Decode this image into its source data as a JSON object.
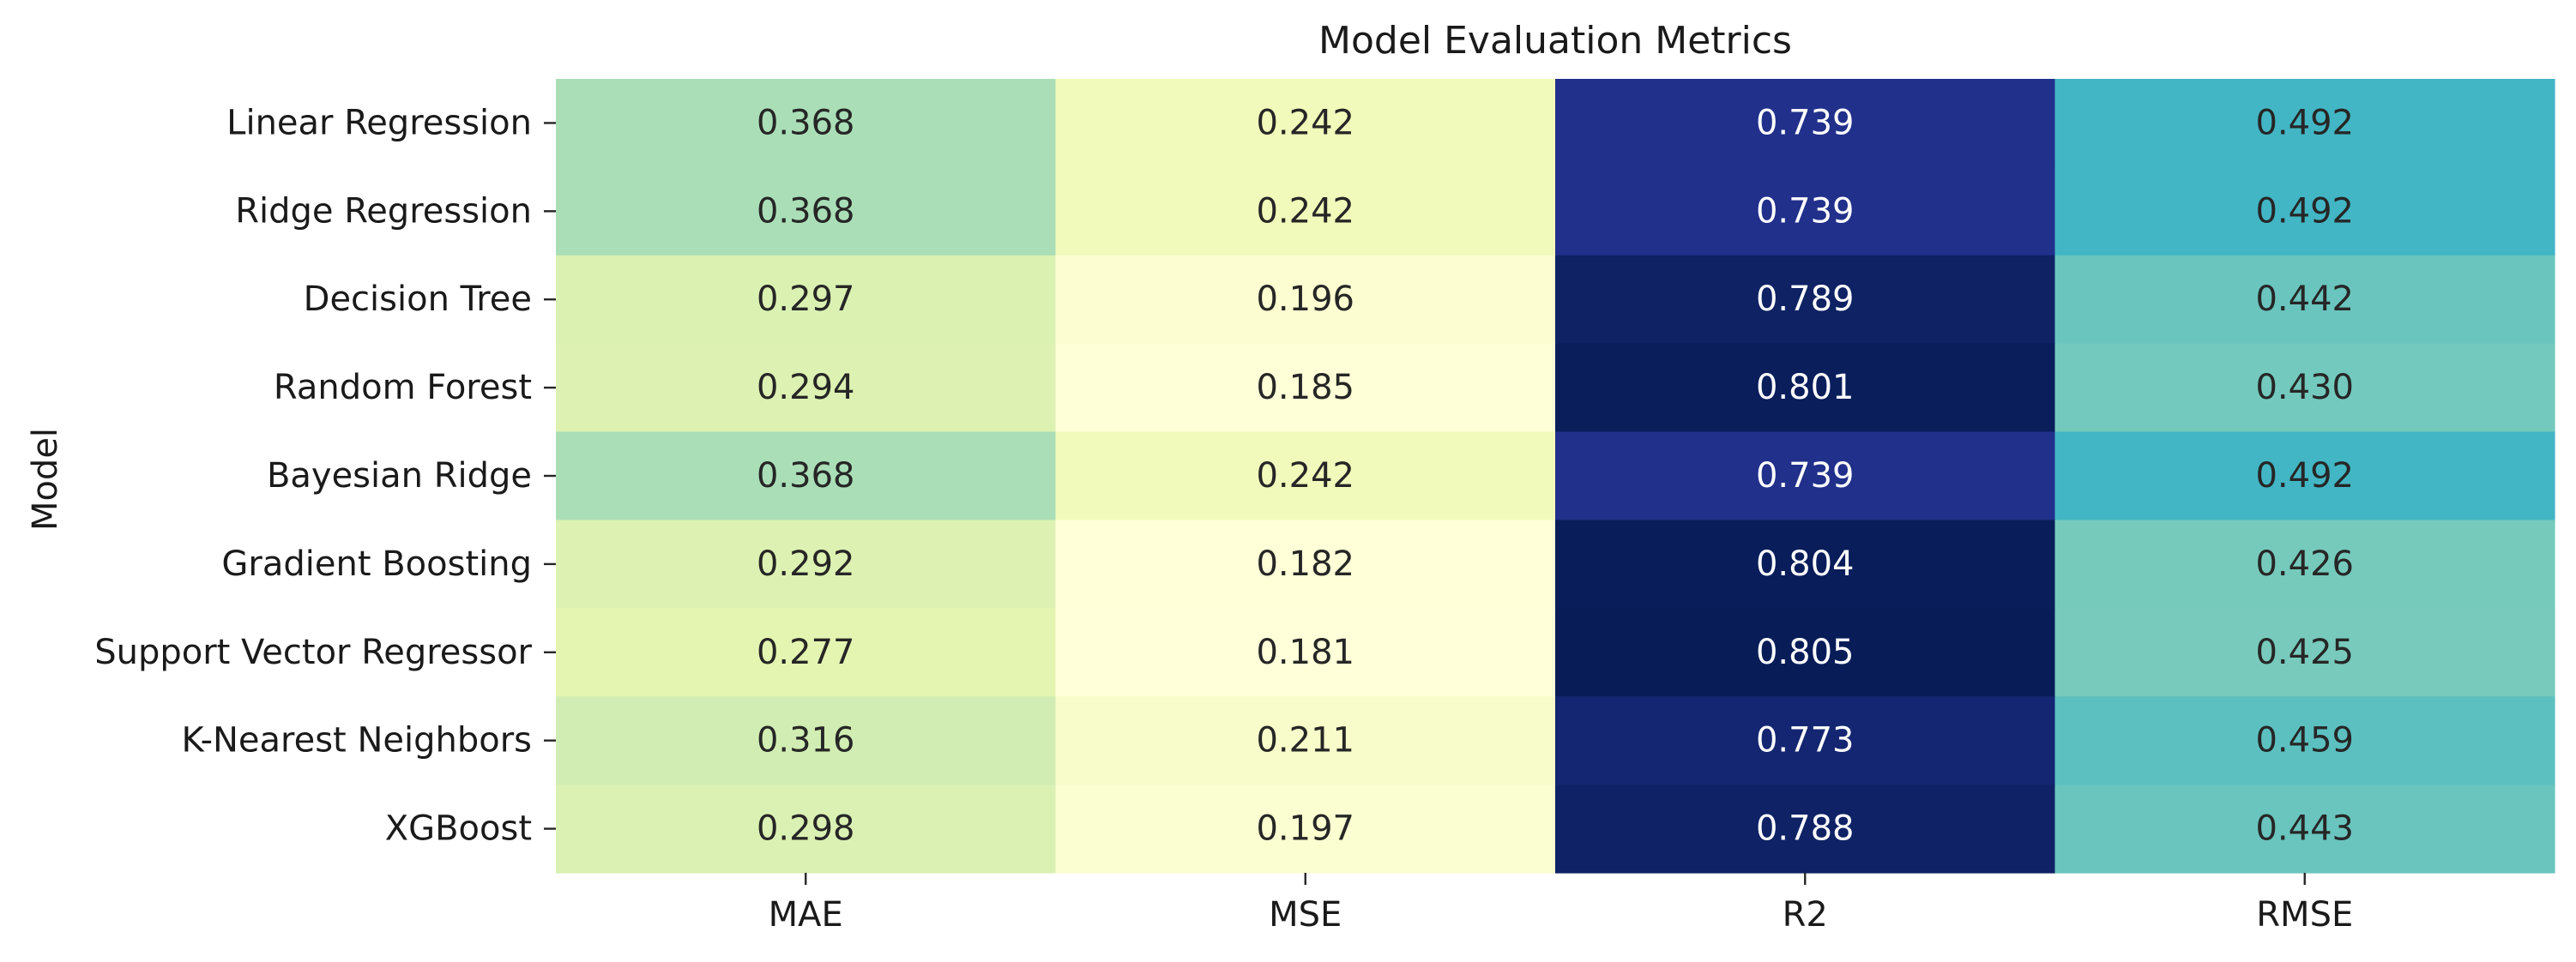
{
  "chart_data": {
    "type": "heatmap",
    "title": "Model Evaluation Metrics",
    "xlabel": "",
    "ylabel": "Model",
    "x_categories": [
      "MAE",
      "MSE",
      "R2",
      "RMSE"
    ],
    "y_categories": [
      "Linear Regression",
      "Ridge Regression",
      "Decision Tree",
      "Random Forest",
      "Bayesian Ridge",
      "Gradient Boosting",
      "Support Vector Regressor",
      "K-Nearest Neighbors",
      "XGBoost"
    ],
    "values": [
      [
        0.368,
        0.242,
        0.739,
        0.492
      ],
      [
        0.368,
        0.242,
        0.739,
        0.492
      ],
      [
        0.297,
        0.196,
        0.789,
        0.442
      ],
      [
        0.294,
        0.185,
        0.801,
        0.43
      ],
      [
        0.368,
        0.242,
        0.739,
        0.492
      ],
      [
        0.292,
        0.182,
        0.804,
        0.426
      ],
      [
        0.277,
        0.181,
        0.805,
        0.425
      ],
      [
        0.316,
        0.211,
        0.773,
        0.459
      ],
      [
        0.298,
        0.197,
        0.788,
        0.443
      ]
    ],
    "value_format": "0.000",
    "colormap": "YlGnBu",
    "color_range": [
      0.181,
      0.805
    ],
    "colorbar": false,
    "grid": false
  }
}
